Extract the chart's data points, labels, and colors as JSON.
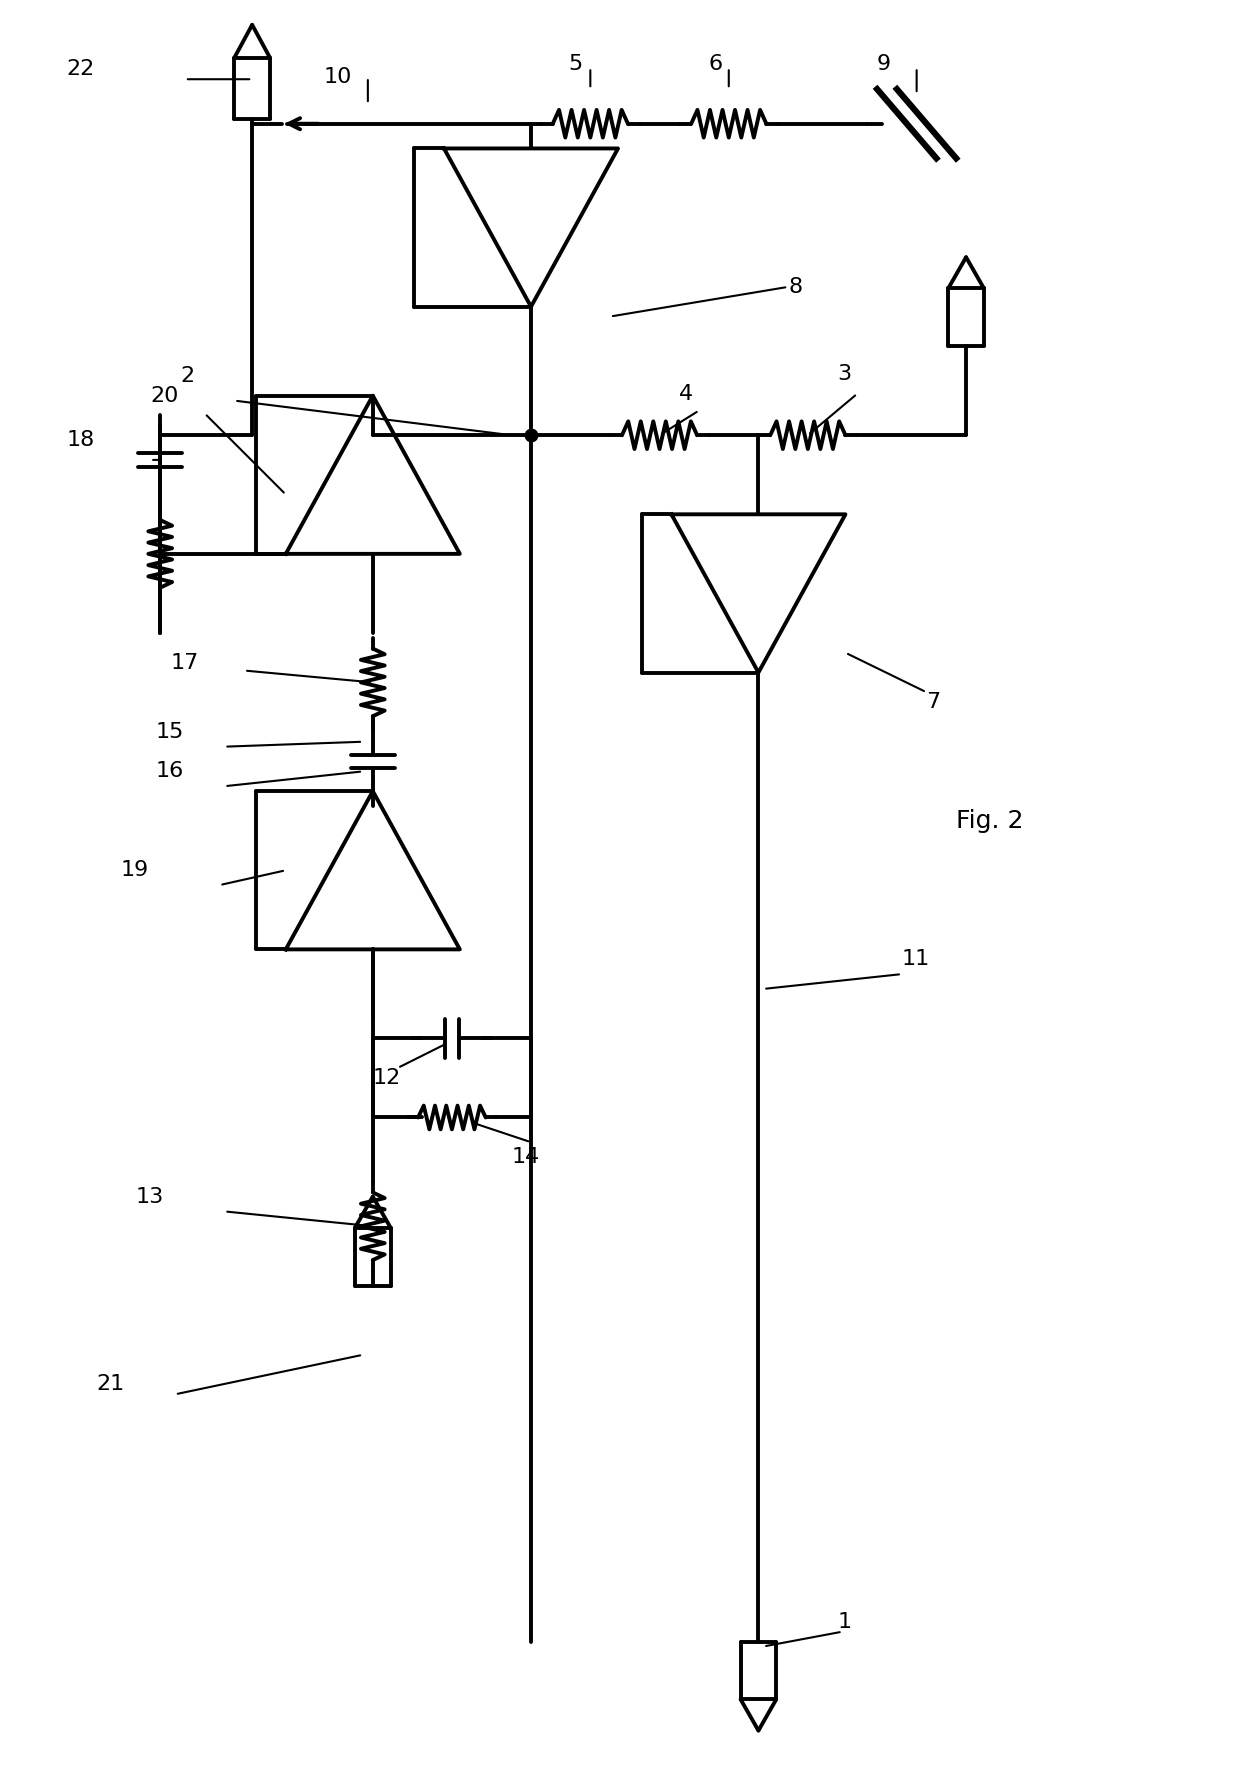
{
  "bg_color": "#ffffff",
  "line_color": "#000000",
  "line_width": 2.8,
  "label_fontsize": 16,
  "figsize": [
    12.4,
    17.89
  ],
  "dpi": 100
}
